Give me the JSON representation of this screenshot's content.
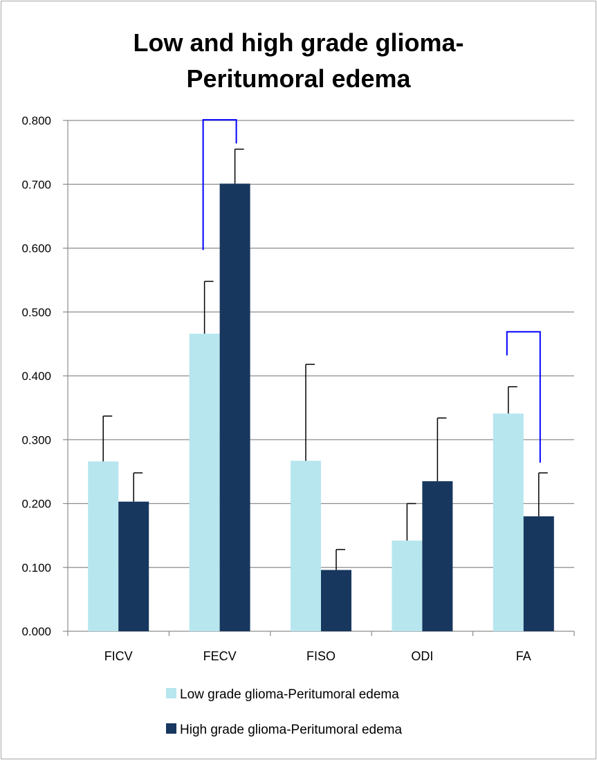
{
  "chart_data": {
    "type": "bar",
    "title_lines": [
      "Low and high grade glioma-",
      "Peritumoral edema"
    ],
    "categories": [
      "FICV",
      "FECV",
      "FISO",
      "ODI",
      "FA"
    ],
    "series": [
      {
        "name": "Low grade glioma-Peritumoral edema",
        "color": "#b7e6ef",
        "values": [
          0.266,
          0.466,
          0.267,
          0.142,
          0.341
        ],
        "error_upper": [
          0.337,
          0.548,
          0.418,
          0.2,
          0.383
        ]
      },
      {
        "name": "High grade glioma-Peritumoral edema",
        "color": "#17375e",
        "values": [
          0.203,
          0.701,
          0.096,
          0.235,
          0.18
        ],
        "error_upper": [
          0.248,
          0.755,
          0.128,
          0.334,
          0.248
        ]
      }
    ],
    "ylim": [
      0,
      0.8
    ],
    "yticks": [
      "0.000",
      "0.100",
      "0.200",
      "0.300",
      "0.400",
      "0.500",
      "0.600",
      "0.700",
      "0.800"
    ],
    "xlabel": "",
    "ylabel": "",
    "grid": true,
    "legend_position": "bottom",
    "significance_brackets": [
      {
        "category": "FECV",
        "low_start": 0.597,
        "top": 0.801,
        "high_end": 0.764
      },
      {
        "category": "FA",
        "low_start": 0.432,
        "top": 0.469,
        "high_end": 0.264
      }
    ],
    "bracket_color": "#0000ff"
  }
}
